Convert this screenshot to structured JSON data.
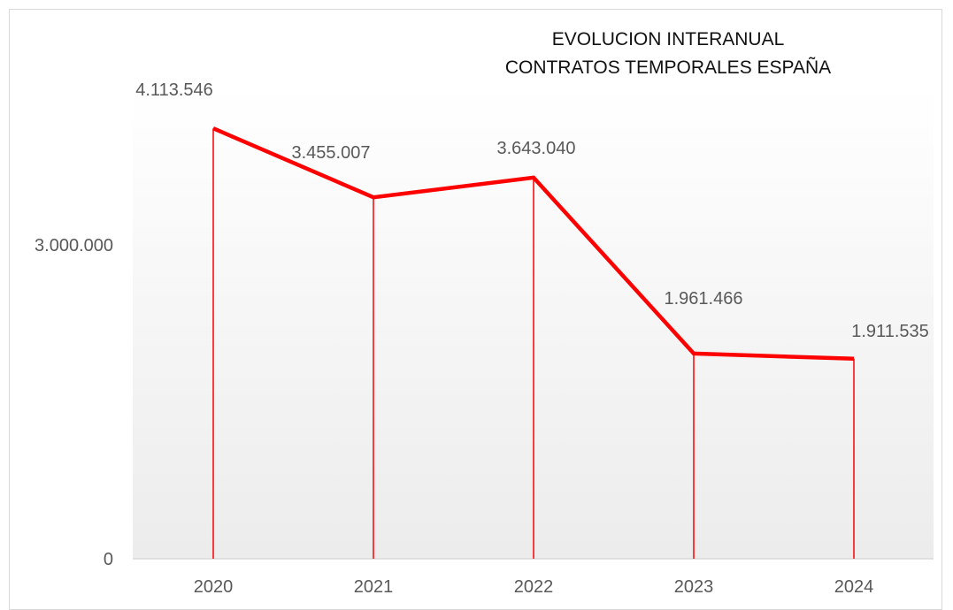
{
  "chart_data": {
    "type": "line",
    "title_lines": [
      "EVOLUCION INTERANUAL",
      "CONTRATOS TEMPORALES ESPAÑA"
    ],
    "categories": [
      "2020",
      "2021",
      "2022",
      "2023",
      "2024"
    ],
    "values": [
      4113546,
      3455007,
      3643040,
      1961466,
      1911535
    ],
    "data_labels": [
      "4.113.546",
      "3.455.007",
      "3.643.040",
      "1.961.466",
      "1.911.535"
    ],
    "y_ticks": [
      0,
      3000000
    ],
    "y_tick_labels": [
      "0",
      "3.000.000"
    ],
    "ylim": [
      0,
      4500000
    ],
    "series_color": "#ff0000",
    "drop_lines": true,
    "legend": "none",
    "grid": false
  }
}
